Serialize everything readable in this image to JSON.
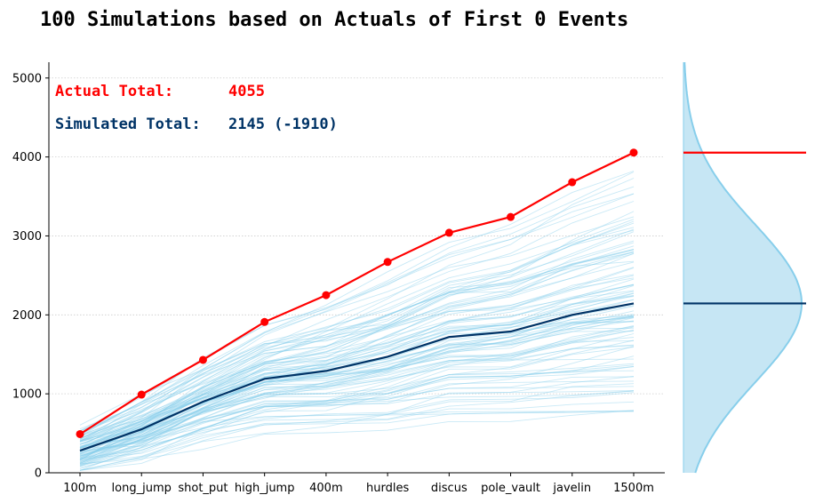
{
  "chart_data": {
    "type": "line",
    "title": "100 Simulations based on Actuals of First 0 Events",
    "categories": [
      "100m",
      "long_jump",
      "shot_put",
      "high_jump",
      "400m",
      "hurdles",
      "discus",
      "pole_vault",
      "javelin",
      "1500m"
    ],
    "ylim": [
      0,
      5200
    ],
    "yticks": [
      0,
      1000,
      2000,
      3000,
      4000,
      5000
    ],
    "ytick_labels": [
      "0",
      "1000",
      "2000",
      "3000",
      "4000",
      "5000"
    ],
    "grid": "horizontal dotted",
    "series": [
      {
        "name": "Actual",
        "color": "#ff0000",
        "values": [
          490,
          990,
          1430,
          1910,
          2250,
          2670,
          3040,
          3240,
          3680,
          4055
        ]
      },
      {
        "name": "Simulated",
        "color": "#003366",
        "values": [
          280,
          550,
          900,
          1190,
          1290,
          1470,
          1720,
          1790,
          2000,
          2145
        ]
      }
    ],
    "simulation_lines": {
      "count": 100,
      "color": "#87ceeb"
    },
    "annotations": {
      "actual_label": "Actual Total:",
      "actual_value": "4055",
      "simulated_label": "Simulated Total:",
      "simulated_value": "2145 (-1910)"
    },
    "density_panel": {
      "fill": "#c6e6f4",
      "stroke": "#87ceeb",
      "mean": 2145,
      "std": 1000,
      "actual": 4055,
      "simulated": 2145
    }
  }
}
